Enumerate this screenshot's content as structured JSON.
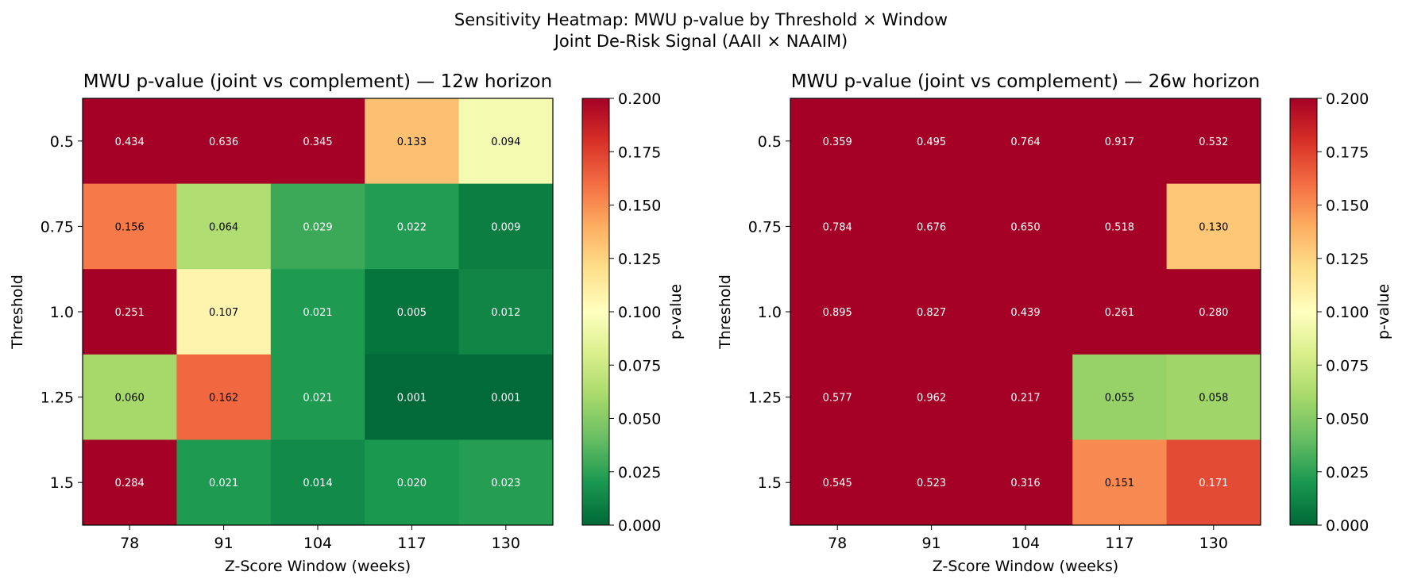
{
  "figure": {
    "suptitle_line1": "Sensitivity Heatmap: MWU p-value by Threshold × Window",
    "suptitle_line2": "Joint De-Risk Signal (AAII × NAAIM)"
  },
  "chart_data": [
    {
      "type": "heatmap",
      "title": "MWU p-value (joint vs complement) — 12w horizon",
      "xlabel": "Z-Score Window (weeks)",
      "ylabel": "Threshold",
      "x_categories": [
        "78",
        "91",
        "104",
        "117",
        "130"
      ],
      "y_categories": [
        "0.5",
        "0.75",
        "1.0",
        "1.25",
        "1.5"
      ],
      "values": [
        [
          0.434,
          0.636,
          0.345,
          0.133,
          0.094
        ],
        [
          0.156,
          0.064,
          0.029,
          0.022,
          0.009
        ],
        [
          0.251,
          0.107,
          0.021,
          0.005,
          0.012
        ],
        [
          0.06,
          0.162,
          0.021,
          0.001,
          0.001
        ],
        [
          0.284,
          0.021,
          0.014,
          0.02,
          0.023
        ]
      ],
      "cell_labels": [
        [
          "0.434",
          "0.636",
          "0.345",
          "0.133",
          "0.094"
        ],
        [
          "0.156",
          "0.064",
          "0.029",
          "0.022",
          "0.009"
        ],
        [
          "0.251",
          "0.107",
          "0.021",
          "0.005",
          "0.012"
        ],
        [
          "0.060",
          "0.162",
          "0.021",
          "0.001",
          "0.001"
        ],
        [
          "0.284",
          "0.021",
          "0.014",
          "0.020",
          "0.023"
        ]
      ],
      "colormap": "RdYlGn_r",
      "vmin": 0.0,
      "vmax": 0.2,
      "colorbar": {
        "label": "p-value",
        "ticks": [
          "0.000",
          "0.025",
          "0.050",
          "0.075",
          "0.100",
          "0.125",
          "0.150",
          "0.175",
          "0.200"
        ]
      }
    },
    {
      "type": "heatmap",
      "title": "MWU p-value (joint vs complement) — 26w horizon",
      "xlabel": "Z-Score Window (weeks)",
      "ylabel": "Threshold",
      "x_categories": [
        "78",
        "91",
        "104",
        "117",
        "130"
      ],
      "y_categories": [
        "0.5",
        "0.75",
        "1.0",
        "1.25",
        "1.5"
      ],
      "values": [
        [
          0.359,
          0.495,
          0.764,
          0.917,
          0.532
        ],
        [
          0.784,
          0.676,
          0.65,
          0.518,
          0.13
        ],
        [
          0.895,
          0.827,
          0.439,
          0.261,
          0.28
        ],
        [
          0.577,
          0.962,
          0.217,
          0.055,
          0.058
        ],
        [
          0.545,
          0.523,
          0.316,
          0.151,
          0.171
        ]
      ],
      "cell_labels": [
        [
          "0.359",
          "0.495",
          "0.764",
          "0.917",
          "0.532"
        ],
        [
          "0.784",
          "0.676",
          "0.650",
          "0.518",
          "0.130"
        ],
        [
          "0.895",
          "0.827",
          "0.439",
          "0.261",
          "0.280"
        ],
        [
          "0.577",
          "0.962",
          "0.217",
          "0.055",
          "0.058"
        ],
        [
          "0.545",
          "0.523",
          "0.316",
          "0.151",
          "0.171"
        ]
      ],
      "colormap": "RdYlGn_r",
      "vmin": 0.0,
      "vmax": 0.2,
      "colorbar": {
        "label": "p-value",
        "ticks": [
          "0.000",
          "0.025",
          "0.050",
          "0.075",
          "0.100",
          "0.125",
          "0.150",
          "0.175",
          "0.200"
        ]
      }
    }
  ]
}
